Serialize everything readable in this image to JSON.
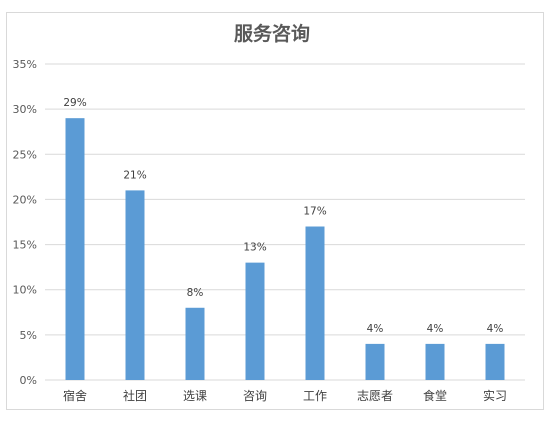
{
  "chart_data": {
    "type": "bar",
    "title": "服务咨询",
    "xlabel": "",
    "ylabel": "",
    "categories": [
      "宿舍",
      "社团",
      "选课",
      "咨询",
      "工作",
      "志愿者",
      "食堂",
      "实习"
    ],
    "values": [
      0.29,
      0.21,
      0.08,
      0.13,
      0.17,
      0.04,
      0.04,
      0.04
    ],
    "value_labels": [
      "29%",
      "21%",
      "8%",
      "13%",
      "17%",
      "4%",
      "4%",
      "4%"
    ],
    "ylim": [
      0,
      0.35
    ],
    "yticks": [
      0,
      0.05,
      0.1,
      0.15,
      0.2,
      0.25,
      0.3,
      0.35
    ],
    "ytick_labels": [
      "0%",
      "5%",
      "10%",
      "15%",
      "20%",
      "25%",
      "30%",
      "35%"
    ],
    "grid": true,
    "legend": "none",
    "bar_color": "#5b9bd5",
    "grid_color": "#d9d9d9"
  }
}
